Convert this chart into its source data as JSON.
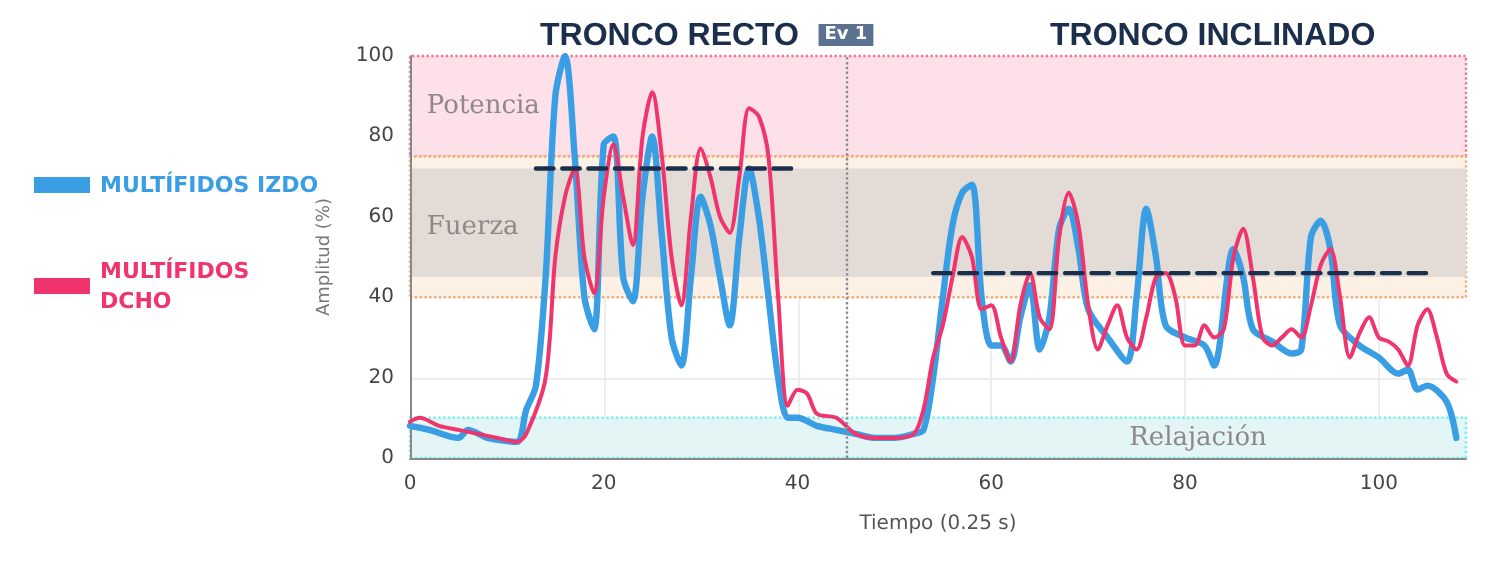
{
  "chart_data": {
    "type": "line",
    "xlabel": "Tiempo (0.25 s)",
    "ylabel": "Amplitud (%)",
    "xlim": [
      0,
      109
    ],
    "xticks": [
      0,
      20,
      40,
      60,
      80,
      100
    ],
    "ylim": [
      0,
      100
    ],
    "yticks": [
      0,
      20,
      40,
      60,
      80,
      100
    ],
    "grid": true,
    "legend": "left",
    "marker": "none",
    "line_style": "solid",
    "series": [
      {
        "name": "MULTÍFIDOS IZDO",
        "color": "#3a9ee4",
        "x": [
          0,
          2,
          5,
          6,
          8,
          11,
          12,
          13,
          14,
          15,
          16,
          17,
          18,
          19,
          20,
          21,
          22,
          23,
          24,
          25,
          26,
          27,
          28,
          29,
          30,
          31,
          32,
          33,
          34,
          35,
          36,
          37,
          38,
          39,
          40,
          42,
          44,
          46,
          48,
          50,
          52,
          53,
          54,
          55,
          56,
          57,
          58,
          59,
          60,
          61,
          62,
          63,
          64,
          65,
          66,
          67,
          68,
          69,
          70,
          72,
          74,
          75,
          76,
          77,
          78,
          80,
          82,
          83,
          85,
          86,
          87,
          89,
          91,
          92,
          93,
          94,
          95,
          96,
          98,
          100,
          102,
          103,
          104,
          105,
          107,
          108
        ],
        "values": [
          8,
          7,
          5,
          7,
          5,
          4,
          12,
          18,
          45,
          90,
          100,
          75,
          40,
          32,
          78,
          80,
          45,
          39,
          65,
          80,
          55,
          30,
          23,
          45,
          65,
          58,
          45,
          33,
          55,
          72,
          60,
          40,
          20,
          10,
          10,
          8,
          7,
          6,
          5,
          5,
          6,
          7,
          20,
          40,
          58,
          66,
          68,
          40,
          28,
          28,
          24,
          35,
          43,
          27,
          35,
          57,
          62,
          52,
          37,
          30,
          24,
          40,
          62,
          50,
          33,
          30,
          28,
          23,
          52,
          45,
          32,
          29,
          26,
          27,
          55,
          59,
          52,
          33,
          28,
          25,
          21,
          22,
          17,
          18,
          14,
          5
        ]
      },
      {
        "name": "MULTÍFIDOS DCHO",
        "color": "#f0346e",
        "x": [
          0,
          1,
          3,
          5,
          7,
          9,
          11,
          12,
          14,
          15,
          16,
          17,
          18,
          19,
          20,
          21,
          22,
          23,
          24,
          25,
          26,
          27,
          28,
          29,
          30,
          31,
          32,
          33,
          34,
          35,
          36,
          37,
          38,
          39,
          40,
          41,
          42,
          44,
          46,
          48,
          50,
          52,
          53,
          54,
          55,
          56,
          57,
          58,
          59,
          60,
          61,
          62,
          63,
          64,
          65,
          66,
          67,
          68,
          69,
          70,
          71,
          72,
          73,
          74,
          75,
          76,
          77,
          78,
          79,
          80,
          81,
          82,
          83,
          84,
          85,
          86,
          87,
          88,
          89,
          90,
          91,
          92,
          93,
          94,
          95,
          96,
          97,
          98,
          99,
          100,
          101,
          102,
          103,
          104,
          105,
          106,
          107,
          108
        ],
        "values": [
          9,
          10,
          8,
          7,
          6,
          5,
          4,
          6,
          20,
          50,
          65,
          72,
          50,
          41,
          65,
          78,
          65,
          53,
          80,
          91,
          75,
          50,
          38,
          60,
          77,
          70,
          60,
          56,
          70,
          87,
          85,
          75,
          40,
          13,
          17,
          16,
          11,
          10,
          6,
          5,
          5,
          6,
          12,
          25,
          33,
          45,
          55,
          50,
          37,
          38,
          30,
          24,
          38,
          46,
          35,
          32,
          55,
          66,
          58,
          38,
          27,
          33,
          38,
          30,
          27,
          35,
          45,
          46,
          40,
          28,
          28,
          33,
          30,
          32,
          50,
          57,
          45,
          30,
          28,
          30,
          32,
          30,
          38,
          48,
          52,
          40,
          25,
          31,
          35,
          30,
          29,
          27,
          23,
          33,
          37,
          30,
          21,
          19
        ]
      },
      {
        "color": "#1b2f4d",
        "line_style": "dashed",
        "x": [
          13,
          40
        ],
        "values": [
          72,
          72
        ]
      },
      {
        "color": "#1b2f4d",
        "line_style": "dashed",
        "x": [
          54,
          105
        ],
        "values": [
          46,
          46
        ]
      }
    ],
    "bands": [
      {
        "axis": "y",
        "from": 75,
        "to": 100,
        "label": "Potencia",
        "color": "#fde0e8"
      },
      {
        "axis": "y",
        "from": 40,
        "to": 75,
        "label": "Fuerza",
        "color": "#fdf0e4"
      },
      {
        "axis": "y",
        "from": 45,
        "to": 72,
        "color": "#e2dbd6"
      },
      {
        "axis": "y",
        "from": 0,
        "to": 10,
        "label": "Relajación",
        "color": "#e4f5f5"
      }
    ],
    "ref_lines": [
      {
        "axis": "x",
        "value": 45,
        "label": "Ev 1",
        "color": "#8a8a9a",
        "line_style": "dotted"
      }
    ],
    "annotations": [
      "TRONCO RECTO",
      "TRONCO INCLINADO"
    ]
  }
}
